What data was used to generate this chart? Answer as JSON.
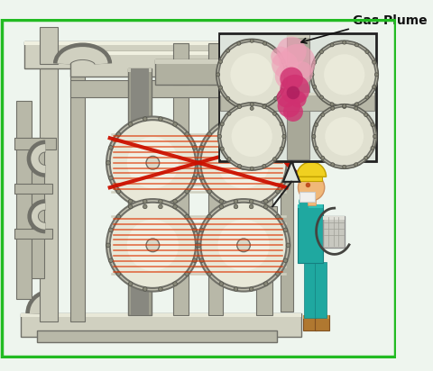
{
  "bg_color": "#eef5ee",
  "border_color": "#22bb22",
  "title": "Gas Plume",
  "title_fontsize": 10,
  "pipe_light": "#d0d0c0",
  "pipe_mid": "#b8b8a8",
  "pipe_dark": "#909088",
  "pipe_edge": "#707068",
  "drum_face": "#e8e8d8",
  "drum_rim": "#c0c0b0",
  "drum_edge": "#707068",
  "bolt_color": "#888878",
  "tube_color": "#d0d0c0",
  "laser_color": "#cc1100",
  "laser_scan_color": "#dd3300",
  "laser_alpha": 0.9,
  "scan_alpha": 0.75,
  "gas_pink_light": "#f0a0b8",
  "gas_pink_dark": "#d03070",
  "gas_alpha_light": 0.65,
  "gas_alpha_dark": 0.8,
  "inset_bg": "#dce8e0",
  "worker_teal": "#1fa8a0",
  "worker_teal_dark": "#158080",
  "worker_yellow": "#f0d020",
  "worker_skin": "#f0b878",
  "worker_skin_dark": "#d09060",
  "worker_white": "#f0f0f0",
  "backpack_color": "#c8c8c0",
  "device_color": "#909090",
  "boot_color": "#b07830",
  "hair_color": "#c05020",
  "shadow_dark": "#505048"
}
